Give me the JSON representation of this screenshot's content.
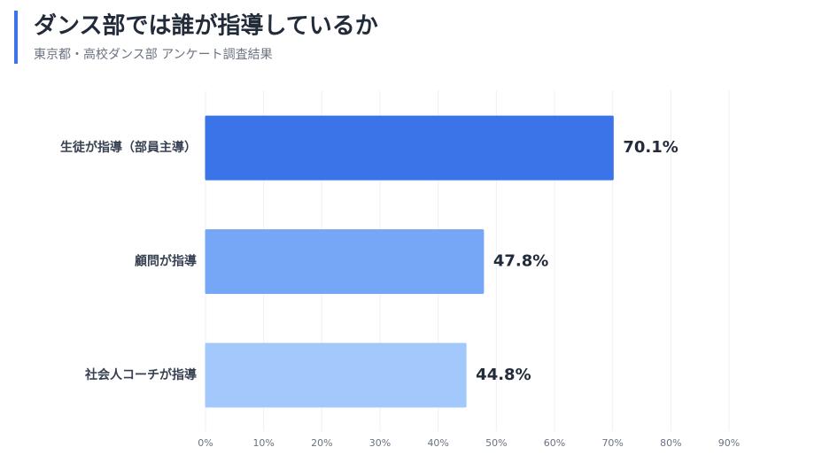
{
  "chart_data": {
    "type": "bar",
    "orientation": "horizontal",
    "title": "ダンス部では誰が指導しているか",
    "subtitle": "東京都・高校ダンス部 アンケート調査結果",
    "categories": [
      "生徒が指導（部員主導）",
      "顧問が指導",
      "社会人コーチが指導"
    ],
    "values": [
      70.1,
      47.8,
      44.8
    ],
    "value_labels": [
      "70.1%",
      "47.8%",
      "44.8%"
    ],
    "colors": [
      "#3b73e8",
      "#76a7f7",
      "#a3c8fb"
    ],
    "xlim": [
      0,
      90
    ],
    "xticks": [
      {
        "value": 0,
        "label": "0%"
      },
      {
        "value": 10,
        "label": "10%"
      },
      {
        "value": 20,
        "label": "20%"
      },
      {
        "value": 30,
        "label": "30%"
      },
      {
        "value": 40,
        "label": "40%"
      },
      {
        "value": 50,
        "label": "50%"
      },
      {
        "value": 60,
        "label": "60%"
      },
      {
        "value": 70,
        "label": "70%"
      },
      {
        "value": 80,
        "label": "80%"
      },
      {
        "value": 90,
        "label": "90%"
      }
    ],
    "grid": true
  }
}
